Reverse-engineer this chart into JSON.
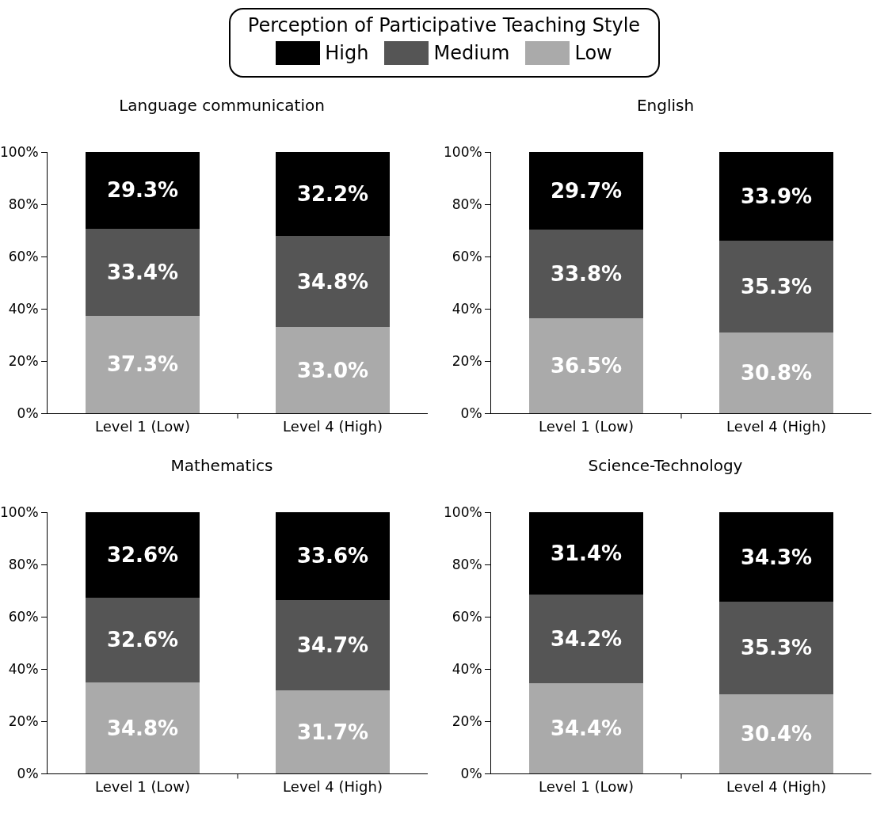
{
  "chart_data": [
    {
      "type": "bar",
      "title": "Language communication",
      "legend_title": "Perception of Participative Teaching Style",
      "legend": "top",
      "stacked": true,
      "grid": false,
      "categories": [
        "Level 1 (Low)",
        "Level 4 (High)"
      ],
      "ylim": [
        0,
        100
      ],
      "yticks": [
        {
          "value": 0,
          "label": "0%"
        },
        {
          "value": 20,
          "label": "20%"
        },
        {
          "value": 40,
          "label": "40%"
        },
        {
          "value": 60,
          "label": "60%"
        },
        {
          "value": 80,
          "label": "80%"
        },
        {
          "value": 100,
          "label": "100%"
        }
      ],
      "series": [
        {
          "name": "Low",
          "color": "#aaaaaa",
          "values": [
            37.3,
            33.0
          ],
          "value_labels": [
            "37.3%",
            "33.0%"
          ]
        },
        {
          "name": "Medium",
          "color": "#555555",
          "values": [
            33.4,
            34.8
          ],
          "value_labels": [
            "33.4%",
            "34.8%"
          ]
        },
        {
          "name": "High",
          "color": "#000000",
          "values": [
            29.3,
            32.2
          ],
          "value_labels": [
            "29.3%",
            "32.2%"
          ]
        }
      ]
    },
    {
      "type": "bar",
      "title": "English",
      "stacked": true,
      "grid": false,
      "categories": [
        "Level 1 (Low)",
        "Level 4 (High)"
      ],
      "ylim": [
        0,
        100
      ],
      "yticks": [
        {
          "value": 0,
          "label": "0%"
        },
        {
          "value": 20,
          "label": "20%"
        },
        {
          "value": 40,
          "label": "40%"
        },
        {
          "value": 60,
          "label": "60%"
        },
        {
          "value": 80,
          "label": "80%"
        },
        {
          "value": 100,
          "label": "100%"
        }
      ],
      "series": [
        {
          "color": "#aaaaaa",
          "values": [
            36.5,
            30.8
          ],
          "value_labels": [
            "36.5%",
            "30.8%"
          ]
        },
        {
          "color": "#555555",
          "values": [
            33.8,
            35.3
          ],
          "value_labels": [
            "33.8%",
            "35.3%"
          ]
        },
        {
          "color": "#000000",
          "values": [
            29.7,
            33.9
          ],
          "value_labels": [
            "29.7%",
            "33.9%"
          ]
        }
      ]
    },
    {
      "type": "bar",
      "title": "Mathematics",
      "stacked": true,
      "grid": false,
      "categories": [
        "Level 1 (Low)",
        "Level 4 (High)"
      ],
      "ylim": [
        0,
        100
      ],
      "yticks": [
        {
          "value": 0,
          "label": "0%"
        },
        {
          "value": 20,
          "label": "20%"
        },
        {
          "value": 40,
          "label": "40%"
        },
        {
          "value": 60,
          "label": "60%"
        },
        {
          "value": 80,
          "label": "80%"
        },
        {
          "value": 100,
          "label": "100%"
        }
      ],
      "series": [
        {
          "color": "#aaaaaa",
          "values": [
            34.8,
            31.7
          ],
          "value_labels": [
            "34.8%",
            "31.7%"
          ]
        },
        {
          "color": "#555555",
          "values": [
            32.6,
            34.7
          ],
          "value_labels": [
            "32.6%",
            "34.7%"
          ]
        },
        {
          "color": "#000000",
          "values": [
            32.6,
            33.6
          ],
          "value_labels": [
            "32.6%",
            "33.6%"
          ]
        }
      ]
    },
    {
      "type": "bar",
      "title": "Science-Technology",
      "stacked": true,
      "grid": false,
      "categories": [
        "Level 1 (Low)",
        "Level 4 (High)"
      ],
      "ylim": [
        0,
        100
      ],
      "yticks": [
        {
          "value": 0,
          "label": "0%"
        },
        {
          "value": 20,
          "label": "20%"
        },
        {
          "value": 40,
          "label": "40%"
        },
        {
          "value": 60,
          "label": "60%"
        },
        {
          "value": 80,
          "label": "80%"
        },
        {
          "value": 100,
          "label": "100%"
        }
      ],
      "series": [
        {
          "color": "#aaaaaa",
          "values": [
            34.4,
            30.4
          ],
          "value_labels": [
            "34.4%",
            "30.4%"
          ]
        },
        {
          "color": "#555555",
          "values": [
            34.2,
            35.3
          ],
          "value_labels": [
            "34.2%",
            "35.3%"
          ]
        },
        {
          "color": "#000000",
          "values": [
            31.4,
            34.3
          ],
          "value_labels": [
            "31.4%",
            "34.3%"
          ]
        }
      ]
    }
  ]
}
